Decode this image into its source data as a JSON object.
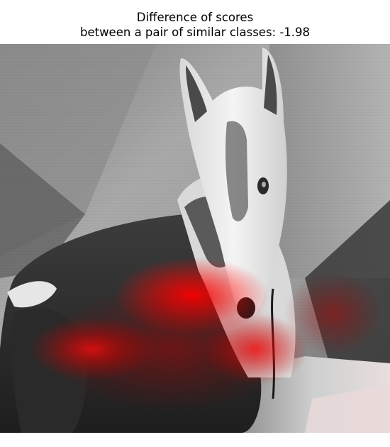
{
  "figure": {
    "title_line1": "Difference of scores",
    "title_line2": "between a pair of similar classes: -1.98"
  },
  "image": {
    "subject": "grayscale-photo-of-dog-with-saliency-overlay",
    "overlay_color": "#ff0000"
  }
}
